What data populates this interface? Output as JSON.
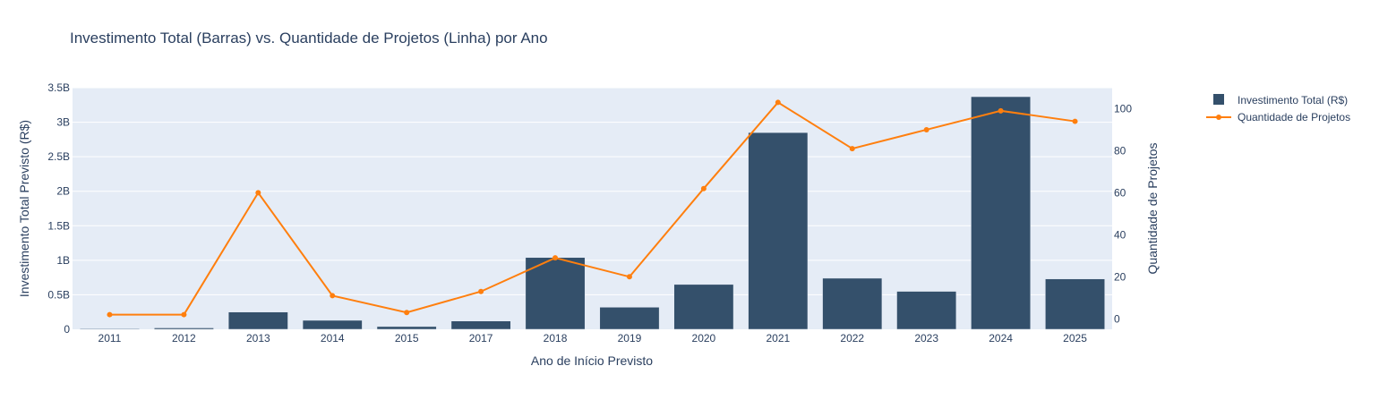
{
  "chart_data": {
    "type": "bar+line",
    "title": "Investimento Total (Barras) vs. Quantidade de Projetos (Linha) por Ano",
    "xlabel": "Ano de Início Previsto",
    "ylabel_left": "Investimento Total Previsto (R$)",
    "ylabel_right": "Quantidade de Projetos",
    "categories": [
      "2011",
      "2012",
      "2013",
      "2014",
      "2015",
      "2017",
      "2018",
      "2019",
      "2020",
      "2021",
      "2022",
      "2023",
      "2024",
      "2025"
    ],
    "y_left": {
      "range": [
        0,
        3.5
      ],
      "ticks": [
        0,
        0.5,
        1,
        1.5,
        2,
        2.5,
        3,
        3.5
      ],
      "tick_labels": [
        "0",
        "0.5B",
        "1B",
        "1.5B",
        "2B",
        "2.5B",
        "3B",
        "3.5B"
      ],
      "unit": "billions"
    },
    "y_right": {
      "range": [
        -5,
        110
      ],
      "ticks": [
        0,
        20,
        40,
        60,
        80,
        100
      ],
      "tick_labels": [
        "0",
        "20",
        "40",
        "60",
        "80",
        "100"
      ]
    },
    "grid": true,
    "legend_position": "top-right",
    "series": [
      {
        "name": "Investimento Total (R$)",
        "type": "bar",
        "axis": "left",
        "color": "#34506b",
        "values": [
          0.01,
          0.02,
          0.25,
          0.13,
          0.04,
          0.12,
          1.04,
          0.32,
          0.65,
          2.85,
          0.74,
          0.55,
          3.37,
          0.73
        ]
      },
      {
        "name": "Quantidade de Projetos",
        "type": "line",
        "axis": "right",
        "color": "#ff7f0e",
        "values": [
          2,
          2,
          60,
          11,
          3,
          13,
          29,
          20,
          62,
          103,
          81,
          90,
          99,
          94
        ]
      }
    ]
  }
}
